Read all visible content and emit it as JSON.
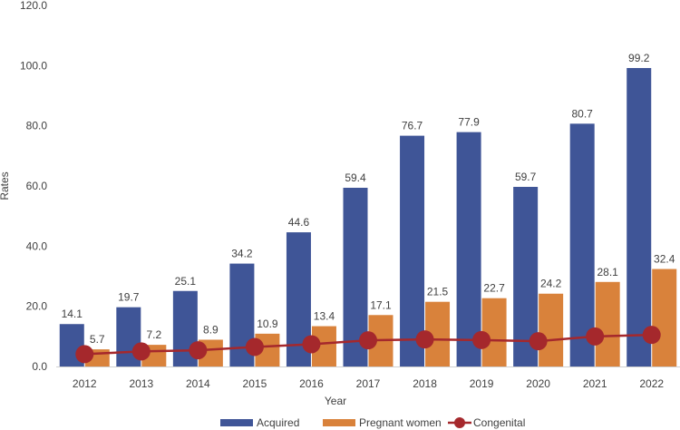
{
  "chart_data": {
    "type": "bar",
    "title": "",
    "xlabel": "Year",
    "ylabel": "Rates",
    "ylim": [
      0,
      120
    ],
    "yticks": [
      "0.0",
      "20.0",
      "40.0",
      "60.0",
      "80.0",
      "100.0",
      "120.0"
    ],
    "grid": false,
    "legend_position": "bottom",
    "categories": [
      "2012",
      "2013",
      "2014",
      "2015",
      "2016",
      "2017",
      "2018",
      "2019",
      "2020",
      "2021",
      "2022"
    ],
    "series": [
      {
        "name": "Acquired",
        "kind": "bar",
        "color": "#3F5597",
        "values": [
          14.1,
          19.7,
          25.1,
          34.2,
          44.6,
          59.4,
          76.7,
          77.9,
          59.7,
          80.7,
          99.2
        ],
        "labels": [
          "14.1",
          "19.7",
          "25.1",
          "34.2",
          "44.6",
          "59.4",
          "76.7",
          "77.9",
          "59.7",
          "80.7",
          "99.2"
        ]
      },
      {
        "name": "Pregnant women",
        "kind": "bar",
        "color": "#D9823B",
        "values": [
          5.7,
          7.2,
          8.9,
          10.9,
          13.4,
          17.1,
          21.5,
          22.7,
          24.2,
          28.1,
          32.4
        ],
        "labels": [
          "5.7",
          "7.2",
          "8.9",
          "10.9",
          "13.4",
          "17.1",
          "21.5",
          "22.7",
          "24.2",
          "28.1",
          "32.4"
        ]
      },
      {
        "name": "Congenital",
        "kind": "line",
        "color": "#A5282C",
        "values": [
          4.1,
          5.0,
          5.4,
          6.5,
          7.4,
          8.7,
          9.0,
          8.8,
          8.4,
          10.0,
          10.5
        ]
      }
    ]
  }
}
